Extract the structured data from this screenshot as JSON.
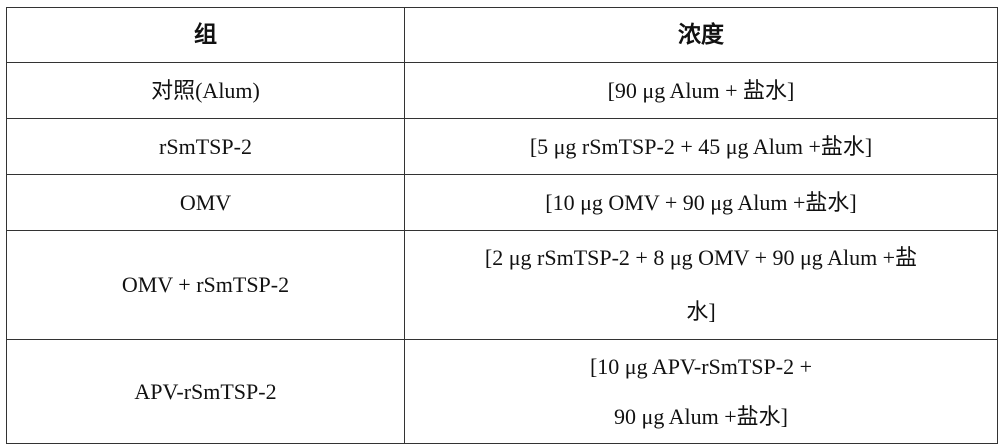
{
  "table": {
    "headers": [
      "组",
      "浓度"
    ],
    "rows": [
      {
        "group": "对照(Alum)",
        "concentration": [
          "[90 μg Alum +  盐水]"
        ]
      },
      {
        "group": "rSmTSP-2",
        "concentration": [
          "[5 μg rSmTSP-2 + 45 μg Alum +盐水]"
        ]
      },
      {
        "group": "OMV",
        "concentration": [
          "[10 μg OMV + 90 μg Alum +盐水]"
        ]
      },
      {
        "group": "OMV + rSmTSP-2",
        "concentration": [
          "[2 μg rSmTSP-2 + 8 μg OMV + 90 μg Alum +盐",
          "水]"
        ]
      },
      {
        "group": "APV-rSmTSP-2",
        "concentration": [
          "[10 μg APV-rSmTSP-2 +",
          "90 μg Alum +盐水]"
        ]
      }
    ]
  }
}
